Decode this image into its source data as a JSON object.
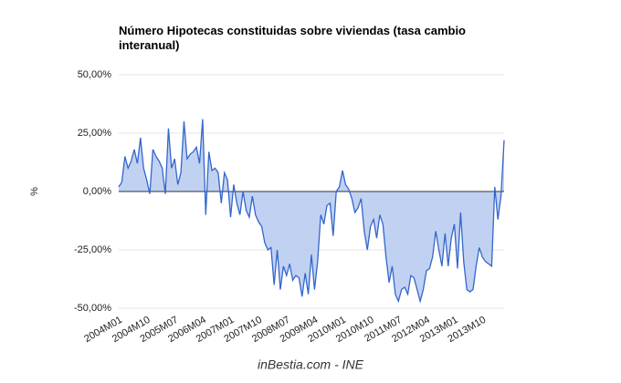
{
  "chart_data": {
    "type": "area",
    "title": "Número Hipotecas constituidas sobre viviendas (tasa cambio interanual)",
    "y_label": "%",
    "source": "inBestia.com - INE",
    "categories": [
      "2004M01",
      null,
      null,
      null,
      null,
      null,
      null,
      null,
      null,
      "2004M10",
      null,
      null,
      null,
      null,
      null,
      null,
      null,
      null,
      "2005M07",
      null,
      null,
      null,
      null,
      null,
      null,
      null,
      null,
      "2006M04",
      null,
      null,
      null,
      null,
      null,
      null,
      null,
      null,
      "2007M01",
      null,
      null,
      null,
      null,
      null,
      null,
      null,
      null,
      "2007M10",
      null,
      null,
      null,
      null,
      null,
      null,
      null,
      null,
      "2008M07",
      null,
      null,
      null,
      null,
      null,
      null,
      null,
      null,
      "2009M04",
      null,
      null,
      null,
      null,
      null,
      null,
      null,
      null,
      "2010M01",
      null,
      null,
      null,
      null,
      null,
      null,
      null,
      null,
      "2010M10",
      null,
      null,
      null,
      null,
      null,
      null,
      null,
      null,
      "2011M07",
      null,
      null,
      null,
      null,
      null,
      null,
      null,
      null,
      "2012M04",
      null,
      null,
      null,
      null,
      null,
      null,
      null,
      null,
      "2013M01",
      null,
      null,
      null,
      null,
      null,
      null,
      null,
      null,
      "2013M10",
      null,
      null,
      null,
      null,
      null,
      null,
      null
    ],
    "values": [
      2,
      4,
      15,
      10,
      13,
      18,
      12,
      23,
      10,
      5,
      -1,
      18,
      15,
      13,
      10,
      -1,
      27,
      10,
      14,
      3,
      8,
      30,
      14,
      16,
      17,
      19,
      12,
      31,
      -10,
      17,
      9,
      10,
      8,
      -5,
      8,
      5,
      -11,
      3,
      -5,
      -10,
      0,
      -8,
      -11,
      -2,
      -10,
      -13,
      -15,
      -22,
      -25,
      -24,
      -40,
      -25,
      -42,
      -32,
      -36,
      -31,
      -38,
      -36,
      -37,
      -45,
      -35,
      -44,
      -27,
      -42,
      -30,
      -10,
      -14,
      -6,
      -5,
      -19,
      0,
      2,
      9,
      3,
      1,
      -3,
      -9,
      -7,
      -3,
      -17,
      -25,
      -15,
      -12,
      -20,
      -10,
      -14,
      -28,
      -39,
      -32,
      -44,
      -47,
      -42,
      -41,
      -44,
      -36,
      -37,
      -42,
      -47,
      -42,
      -34,
      -33,
      -28,
      -17,
      -25,
      -32,
      -18,
      -32,
      -20,
      -14,
      -33,
      -9,
      -30,
      -42,
      -43,
      -42,
      -32,
      -24,
      -28,
      -30,
      -31,
      -32,
      2,
      -12,
      -2,
      22
    ],
    "color": "#3366cc",
    "fill_color": "#b6c9ef",
    "ylim": [
      -50,
      50
    ],
    "yticks": [
      {
        "value": -50,
        "label": "-50,00%"
      },
      {
        "value": -25,
        "label": "-25,00%"
      },
      {
        "value": 0,
        "label": "0,00%"
      },
      {
        "value": 25,
        "label": "25,00%"
      },
      {
        "value": 50,
        "label": "50,00%"
      }
    ],
    "grid": true
  }
}
